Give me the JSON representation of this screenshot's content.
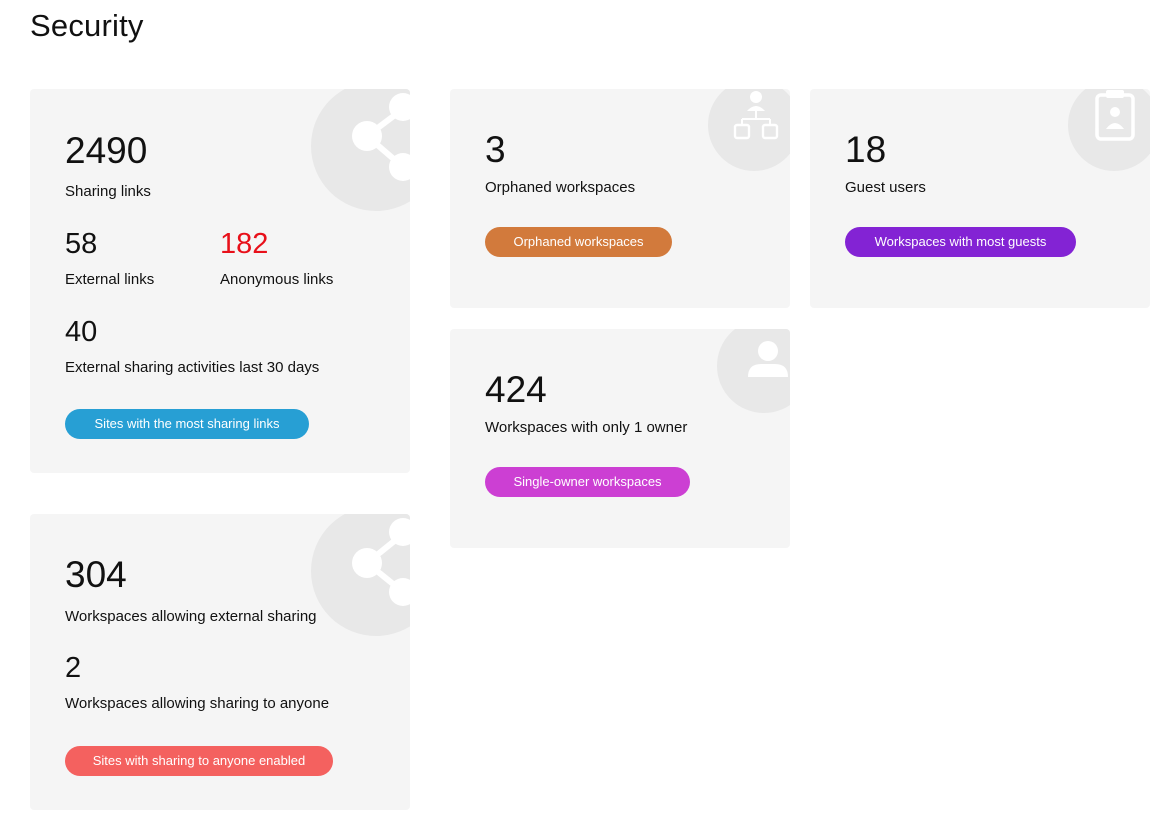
{
  "page": {
    "title": "Security"
  },
  "sharing_card": {
    "total_value": "2490",
    "total_label": "Sharing links",
    "external_value": "58",
    "external_label": "External links",
    "anonymous_value": "182",
    "anonymous_label": "Anonymous links",
    "activities_value": "40",
    "activities_label": "External sharing activities last 30 days",
    "button_label": "Sites with the most sharing links",
    "button_color": "#279fd4",
    "anonymous_color": "#e8101a",
    "icon": "share-icon"
  },
  "external_sharing_card": {
    "workspaces_value": "304",
    "workspaces_label": "Workspaces allowing external sharing",
    "anyone_value": "2",
    "anyone_label": "Workspaces allowing sharing to anyone",
    "button_label": "Sites with sharing to anyone enabled",
    "button_color": "#f4615f",
    "icon": "share-icon"
  },
  "orphaned_card": {
    "value": "3",
    "label": "Orphaned workspaces",
    "button_label": "Orphaned workspaces",
    "button_color": "#d27a3c",
    "icon": "org-chart-icon"
  },
  "guests_card": {
    "value": "18",
    "label": "Guest users",
    "button_label": "Workspaces with most guests",
    "button_color": "#8323d4",
    "icon": "clipboard-user-icon"
  },
  "single_owner_card": {
    "value": "424",
    "label": "Workspaces with only 1 owner",
    "button_label": "Single-owner workspaces",
    "button_color": "#cc3fd3",
    "icon": "user-icon"
  }
}
